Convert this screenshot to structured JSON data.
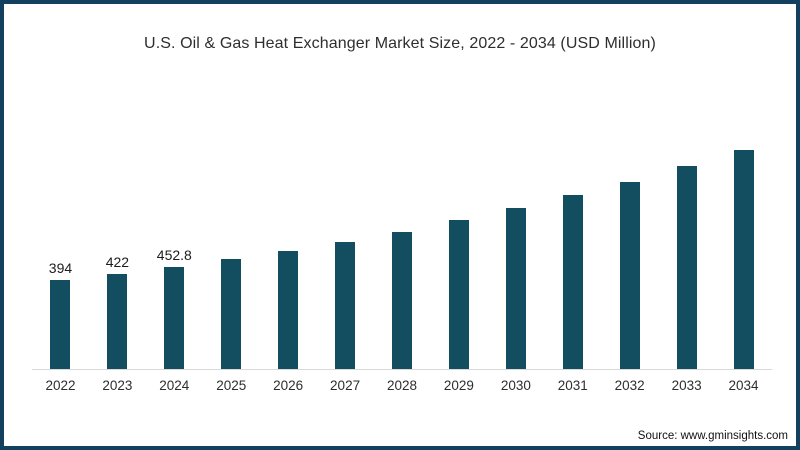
{
  "frame": {
    "border_color": "#14405f",
    "background_color": "#ffffff"
  },
  "chart_data": {
    "type": "bar",
    "title": "U.S. Oil & Gas Heat Exchanger Market Size, 2022 - 2034 (USD Million)",
    "xlabel": "",
    "ylabel": "",
    "unit": "USD Million",
    "categories": [
      "2022",
      "2023",
      "2024",
      "2025",
      "2026",
      "2027",
      "2028",
      "2029",
      "2030",
      "2031",
      "2032",
      "2033",
      "2034"
    ],
    "values": [
      394,
      422,
      452.8,
      485,
      521,
      562,
      607,
      660,
      714,
      772,
      828,
      897,
      968
    ],
    "data_labels": [
      "394",
      "422",
      "452.8",
      "",
      "",
      "",
      "",
      "",
      "",
      "",
      "",
      "",
      ""
    ],
    "ylim": [
      0,
      1000
    ],
    "grid": false,
    "legend": false,
    "y_axis_visible": false,
    "bar_color": "#124e60",
    "axis_line_color": "#d9d9d9"
  },
  "source": "Source: www.gminsights.com"
}
